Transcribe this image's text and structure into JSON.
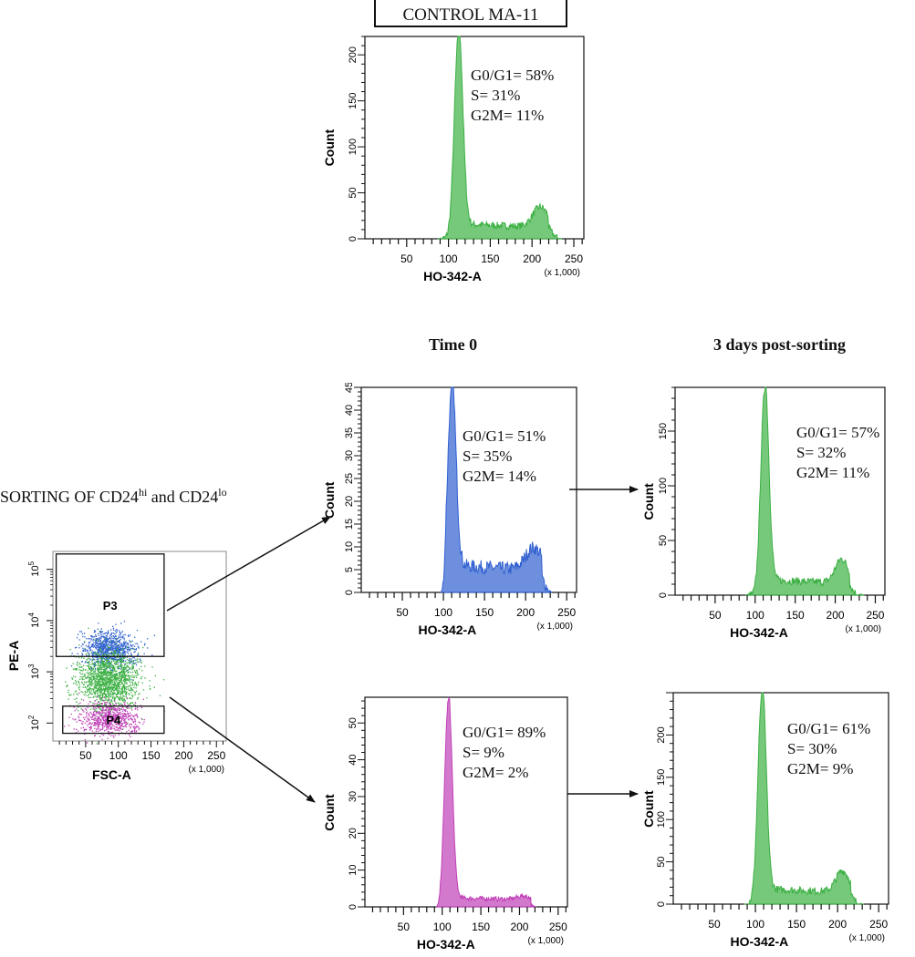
{
  "header": {
    "title": "CONTROL MA-11",
    "col_time0": "Time 0",
    "col_3days": "3 days post-sorting",
    "sorting_label": {
      "prefix": "SORTING OF CD24",
      "sup1": "hi",
      "middle": " and CD24",
      "sup2": "lo"
    }
  },
  "colors": {
    "green": "#3cb043",
    "blue": "#2f5fd0",
    "magenta": "#c040b8",
    "axis": "#111111"
  },
  "chart_data": [
    {
      "id": "control",
      "type": "histogram",
      "color": "green",
      "xlabel": "HO-342-A",
      "xunit": "(x 1,000)",
      "ylabel": "Count",
      "xlim": [
        0,
        262
      ],
      "ylim": [
        0,
        220
      ],
      "xticks": [
        50,
        100,
        150,
        200,
        250
      ],
      "yticks": [
        0,
        50,
        100,
        150,
        200
      ],
      "peaks": [
        {
          "center": 112,
          "height": 222,
          "width": 5
        },
        {
          "center": 210,
          "height": 22,
          "width": 9
        }
      ],
      "s_phase_level": 16,
      "range": [
        88,
        236
      ],
      "stats": [
        "G0/G1= 58%",
        "S= 31%",
        "G2M= 11%"
      ]
    },
    {
      "id": "cd24hi_t0",
      "type": "histogram",
      "color": "blue",
      "xlabel": "HO-342-A",
      "xunit": "(x 1,000)",
      "ylabel": "Count",
      "xlim": [
        0,
        262
      ],
      "ylim": [
        0,
        45
      ],
      "xticks": [
        50,
        100,
        150,
        200,
        250
      ],
      "yticks": [
        0,
        5,
        10,
        15,
        20,
        25,
        30,
        35,
        40,
        45
      ],
      "peaks": [
        {
          "center": 110,
          "height": 44,
          "width": 5
        },
        {
          "center": 210,
          "height": 5,
          "width": 10
        }
      ],
      "s_phase_level": 6,
      "range": [
        97,
        232
      ],
      "stats": [
        "G0/G1= 51%",
        "S= 35%",
        "G2M= 14%"
      ]
    },
    {
      "id": "cd24hi_3d",
      "type": "histogram",
      "color": "green",
      "xlabel": "HO-342-A",
      "xunit": "(x 1,000)",
      "ylabel": "Count",
      "xlim": [
        0,
        262
      ],
      "ylim": [
        0,
        190
      ],
      "xticks": [
        50,
        100,
        150,
        200,
        250
      ],
      "yticks": [
        0,
        50,
        100,
        150
      ],
      "peaks": [
        {
          "center": 112,
          "height": 188,
          "width": 5
        },
        {
          "center": 208,
          "height": 22,
          "width": 8
        }
      ],
      "s_phase_level": 14,
      "range": [
        88,
        236
      ],
      "stats": [
        "G0/G1= 57%",
        "S= 32%",
        "G2M= 11%"
      ]
    },
    {
      "id": "cd24lo_t0",
      "type": "histogram",
      "color": "magenta",
      "xlabel": "HO-342-A",
      "xunit": "(x 1,000)",
      "ylabel": "Count",
      "xlim": [
        0,
        262
      ],
      "ylim": [
        0,
        57
      ],
      "xticks": [
        50,
        100,
        150,
        200,
        250
      ],
      "yticks": [
        0,
        10,
        20,
        30,
        40,
        50
      ],
      "peaks": [
        {
          "center": 108,
          "height": 56,
          "width": 5
        },
        {
          "center": 205,
          "height": 1,
          "width": 8
        }
      ],
      "s_phase_level": 2.5,
      "range": [
        92,
        222
      ],
      "stats": [
        "G0/G1= 89%",
        "S= 9%",
        "G2M= 2%"
      ]
    },
    {
      "id": "cd24lo_3d",
      "type": "histogram",
      "color": "green",
      "xlabel": "HO-342-A",
      "xunit": "(x 1,000)",
      "ylabel": "Count",
      "xlim": [
        0,
        262
      ],
      "ylim": [
        0,
        250
      ],
      "xticks": [
        50,
        100,
        150,
        200,
        250
      ],
      "yticks": [
        0,
        50,
        100,
        150,
        200
      ],
      "peaks": [
        {
          "center": 108,
          "height": 250,
          "width": 5
        },
        {
          "center": 206,
          "height": 25,
          "width": 8
        }
      ],
      "s_phase_level": 18,
      "range": [
        86,
        232
      ],
      "stats": [
        "G0/G1= 61%",
        "S= 30%",
        "G2M= 9%"
      ]
    },
    {
      "id": "sort_dotplot",
      "type": "scatter",
      "xlabel": "FSC-A",
      "xunit": "(x 1,000)",
      "ylabel": "PE-A",
      "xlim": [
        0,
        265
      ],
      "ylim_log": [
        1.65,
        5.35
      ],
      "xticks": [
        50,
        100,
        150,
        200,
        250
      ],
      "yticks_log": [
        {
          "base": "10",
          "exp": "2",
          "v": 2
        },
        {
          "base": "10",
          "exp": "3",
          "v": 3
        },
        {
          "base": "10",
          "exp": "4",
          "v": 4
        },
        {
          "base": "10",
          "exp": "5",
          "v": 5
        }
      ],
      "gates": [
        {
          "name": "P3",
          "x": [
            5,
            170
          ],
          "log": [
            3.3,
            5.3
          ]
        },
        {
          "name": "P4",
          "x": [
            15,
            170
          ],
          "log": [
            1.8,
            2.33
          ]
        }
      ],
      "populations": [
        {
          "color": "blue",
          "x_center": 85,
          "x_spread": 45,
          "log_center": 3.45,
          "log_spread": 0.18,
          "n": 900
        },
        {
          "color": "green",
          "x_center": 85,
          "x_spread": 52,
          "log_center": 2.85,
          "log_spread": 0.28,
          "n": 1500
        },
        {
          "color": "magenta",
          "x_center": 85,
          "x_spread": 50,
          "log_center": 2.1,
          "log_spread": 0.15,
          "n": 700
        }
      ]
    }
  ]
}
